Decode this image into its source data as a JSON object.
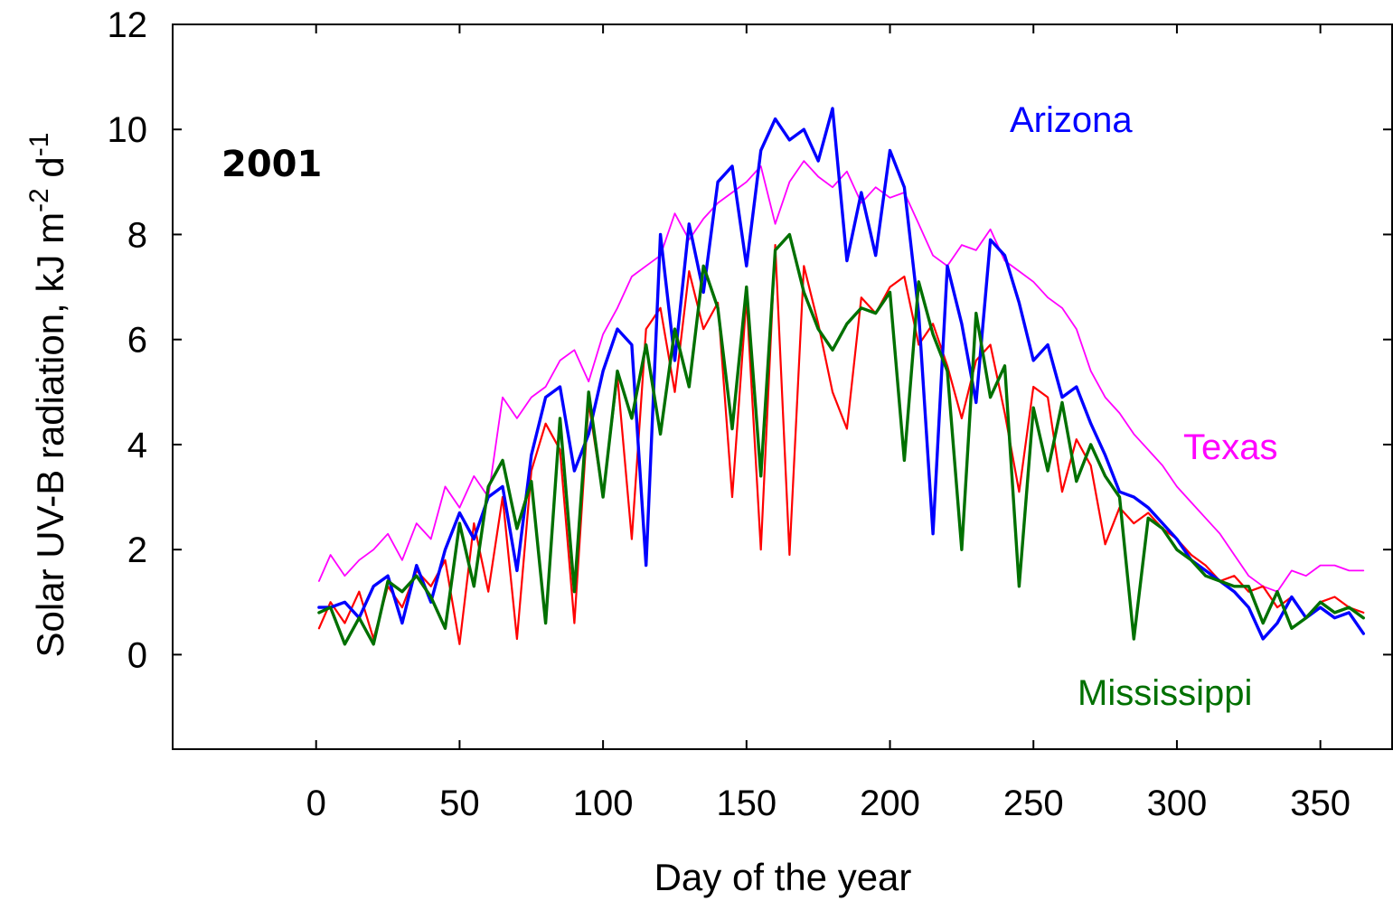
{
  "chart_data": {
    "type": "line",
    "title": "",
    "annotation": "2001",
    "xlabel": "Day of the year",
    "ylabel_main": "Solar UV-B radiation, kJ m",
    "ylabel_sup1": "-2",
    "ylabel_mid": " d",
    "ylabel_sup2": "-1",
    "xlim": [
      -50,
      375
    ],
    "ylim": [
      -1.8,
      12
    ],
    "xticks": [
      0,
      50,
      100,
      150,
      200,
      250,
      300,
      350
    ],
    "yticks": [
      0,
      2,
      4,
      6,
      8,
      10,
      12
    ],
    "xtick_labels": [
      "0",
      "50",
      "100",
      "150",
      "200",
      "250",
      "300",
      "350"
    ],
    "ytick_labels": [
      "0",
      "2",
      "4",
      "6",
      "8",
      "10",
      "12"
    ],
    "grid": false,
    "series_order": [
      "Texas",
      "Mississippi_red",
      "Arizona",
      "Mississippi"
    ],
    "series": [
      {
        "key": "Texas",
        "name": "Texas",
        "color": "#ff00ff",
        "width": 1.8,
        "label": "Texas",
        "x": [
          1,
          5,
          10,
          15,
          20,
          25,
          30,
          35,
          40,
          45,
          50,
          55,
          60,
          65,
          70,
          75,
          80,
          85,
          90,
          95,
          100,
          105,
          110,
          115,
          120,
          125,
          130,
          135,
          140,
          145,
          150,
          155,
          160,
          165,
          170,
          175,
          180,
          185,
          190,
          195,
          200,
          205,
          210,
          215,
          220,
          225,
          230,
          235,
          240,
          245,
          250,
          255,
          260,
          265,
          270,
          275,
          280,
          285,
          290,
          295,
          300,
          305,
          310,
          315,
          320,
          325,
          330,
          335,
          340,
          345,
          350,
          355,
          360,
          365
        ],
        "values": [
          1.4,
          1.9,
          1.5,
          1.8,
          2.0,
          2.3,
          1.8,
          2.5,
          2.2,
          3.2,
          2.8,
          3.4,
          3.0,
          4.9,
          4.5,
          4.9,
          5.1,
          5.6,
          5.8,
          5.2,
          6.1,
          6.6,
          7.2,
          7.4,
          7.6,
          8.4,
          7.9,
          8.3,
          8.6,
          8.8,
          9.0,
          9.3,
          8.2,
          9.0,
          9.4,
          9.1,
          8.9,
          9.2,
          8.6,
          8.9,
          8.7,
          8.8,
          8.2,
          7.6,
          7.4,
          7.8,
          7.7,
          8.1,
          7.5,
          7.3,
          7.1,
          6.8,
          6.6,
          6.2,
          5.4,
          4.9,
          4.6,
          4.2,
          3.9,
          3.6,
          3.2,
          2.9,
          2.6,
          2.3,
          1.9,
          1.5,
          1.3,
          1.2,
          1.6,
          1.5,
          1.7,
          1.7,
          1.6,
          1.6
        ]
      },
      {
        "key": "Mississippi_red",
        "name": "",
        "color": "#ff0000",
        "width": 2.2,
        "label": "",
        "x": [
          1,
          5,
          10,
          15,
          20,
          25,
          30,
          35,
          40,
          45,
          50,
          55,
          60,
          65,
          70,
          75,
          80,
          85,
          90,
          95,
          100,
          105,
          110,
          115,
          120,
          125,
          130,
          135,
          140,
          145,
          150,
          155,
          160,
          165,
          170,
          175,
          180,
          185,
          190,
          195,
          200,
          205,
          210,
          215,
          220,
          225,
          230,
          235,
          240,
          245,
          250,
          255,
          260,
          265,
          270,
          275,
          280,
          285,
          290,
          295,
          300,
          305,
          310,
          315,
          320,
          325,
          330,
          335,
          340,
          345,
          350,
          355,
          360,
          365
        ],
        "values": [
          0.5,
          1.0,
          0.6,
          1.2,
          0.3,
          1.3,
          0.9,
          1.6,
          1.3,
          1.8,
          0.2,
          2.5,
          1.2,
          3.0,
          0.3,
          3.5,
          4.4,
          3.9,
          0.6,
          4.8,
          3.0,
          5.3,
          2.2,
          6.2,
          6.6,
          5.0,
          7.3,
          6.2,
          6.7,
          3.0,
          6.8,
          2.0,
          7.8,
          1.9,
          7.4,
          6.3,
          5.0,
          4.3,
          6.8,
          6.5,
          7.0,
          7.2,
          5.9,
          6.3,
          5.5,
          4.5,
          5.6,
          5.9,
          4.6,
          3.1,
          5.1,
          4.9,
          3.1,
          4.1,
          3.6,
          2.1,
          2.8,
          2.5,
          2.7,
          2.4,
          2.2,
          1.9,
          1.7,
          1.4,
          1.5,
          1.2,
          1.3,
          0.9,
          1.1,
          0.7,
          1.0,
          1.1,
          0.9,
          0.8
        ]
      },
      {
        "key": "Arizona",
        "name": "Arizona",
        "color": "#0000ff",
        "width": 3.4,
        "label": "Arizona",
        "x": [
          1,
          5,
          10,
          15,
          20,
          25,
          30,
          35,
          40,
          45,
          50,
          55,
          60,
          65,
          70,
          75,
          80,
          85,
          90,
          95,
          100,
          105,
          110,
          115,
          120,
          125,
          130,
          135,
          140,
          145,
          150,
          155,
          160,
          165,
          170,
          175,
          180,
          185,
          190,
          195,
          200,
          205,
          210,
          215,
          220,
          225,
          230,
          235,
          240,
          245,
          250,
          255,
          260,
          265,
          270,
          275,
          280,
          285,
          290,
          295,
          300,
          305,
          310,
          315,
          320,
          325,
          330,
          335,
          340,
          345,
          350,
          355,
          360,
          365
        ],
        "values": [
          0.9,
          0.9,
          1.0,
          0.7,
          1.3,
          1.5,
          0.6,
          1.7,
          1.0,
          2.0,
          2.7,
          2.2,
          3.0,
          3.2,
          1.6,
          3.8,
          4.9,
          5.1,
          3.5,
          4.2,
          5.4,
          6.2,
          5.9,
          1.7,
          8.0,
          5.6,
          8.2,
          6.9,
          9.0,
          9.3,
          7.4,
          9.6,
          10.2,
          9.8,
          10.0,
          9.4,
          10.4,
          7.5,
          8.8,
          7.6,
          9.6,
          8.9,
          6.5,
          2.3,
          7.4,
          6.3,
          4.8,
          7.9,
          7.6,
          6.7,
          5.6,
          5.9,
          4.9,
          5.1,
          4.4,
          3.8,
          3.1,
          3.0,
          2.8,
          2.5,
          2.2,
          1.8,
          1.6,
          1.4,
          1.2,
          0.9,
          0.3,
          0.6,
          1.1,
          0.7,
          0.9,
          0.7,
          0.8,
          0.4
        ]
      },
      {
        "key": "Mississippi",
        "name": "Mississippi",
        "color": "#007000",
        "width": 3.4,
        "label": "Mississippi",
        "x": [
          1,
          5,
          10,
          15,
          20,
          25,
          30,
          35,
          40,
          45,
          50,
          55,
          60,
          65,
          70,
          75,
          80,
          85,
          90,
          95,
          100,
          105,
          110,
          115,
          120,
          125,
          130,
          135,
          140,
          145,
          150,
          155,
          160,
          165,
          170,
          175,
          180,
          185,
          190,
          195,
          200,
          205,
          210,
          215,
          220,
          225,
          230,
          235,
          240,
          245,
          250,
          255,
          260,
          265,
          270,
          275,
          280,
          285,
          290,
          295,
          300,
          305,
          310,
          315,
          320,
          325,
          330,
          335,
          340,
          345,
          350,
          355,
          360,
          365
        ],
        "values": [
          0.8,
          0.9,
          0.2,
          0.7,
          0.2,
          1.4,
          1.2,
          1.5,
          1.1,
          0.5,
          2.5,
          1.3,
          3.2,
          3.7,
          2.4,
          3.3,
          0.6,
          4.5,
          1.2,
          5.0,
          3.0,
          5.4,
          4.5,
          5.9,
          4.2,
          6.2,
          5.1,
          7.4,
          6.6,
          4.3,
          7.0,
          3.4,
          7.7,
          8.0,
          6.9,
          6.2,
          5.8,
          6.3,
          6.6,
          6.5,
          6.9,
          3.7,
          7.1,
          6.1,
          5.4,
          2.0,
          6.5,
          4.9,
          5.5,
          1.3,
          4.7,
          3.5,
          4.8,
          3.3,
          4.0,
          3.4,
          3.0,
          0.3,
          2.6,
          2.4,
          2.0,
          1.8,
          1.5,
          1.4,
          1.3,
          1.3,
          0.6,
          1.2,
          0.5,
          0.7,
          1.0,
          0.8,
          0.9,
          0.7
        ]
      }
    ]
  }
}
